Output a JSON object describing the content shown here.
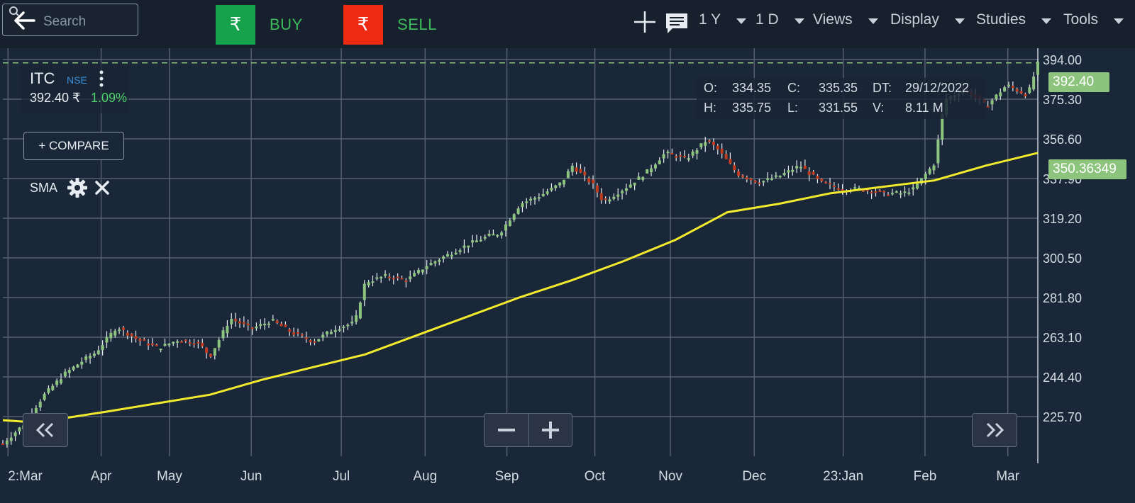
{
  "search": {
    "placeholder": "Search"
  },
  "trade": {
    "buy_label": "BUY",
    "sell_label": "SELL",
    "currency_glyph": "₹"
  },
  "toolbar": {
    "menus": [
      {
        "label": "1 Y"
      },
      {
        "label": "1 D"
      },
      {
        "label": "Views"
      },
      {
        "label": "Display"
      },
      {
        "label": "Studies"
      },
      {
        "label": "Tools"
      }
    ]
  },
  "ticker": {
    "symbol": "ITC",
    "exchange": "NSE",
    "price": "392.40 ₹",
    "change": "1.09%"
  },
  "compare_label": "+ COMPARE",
  "study": {
    "label": "SMA"
  },
  "ohlc": {
    "o_label": "O:",
    "o_value": "334.35",
    "c_label": "C:",
    "c_value": "335.35",
    "dt_label": "DT:",
    "dt_value": "29/12/2022",
    "h_label": "H:",
    "h_value": "335.75",
    "l_label": "L:",
    "l_value": "331.55",
    "v_label": "V:",
    "v_value": "8.11 M"
  },
  "price_tags": {
    "last": "392.40",
    "sma": "350.36349"
  },
  "colors": {
    "up": "#8cc47e",
    "down": "#c23a1e",
    "sma": "#f2ea2c",
    "grid": "#55606d",
    "buy": "#16a24a",
    "sell": "#ee2a12"
  },
  "icons": [
    "back-arrow-icon",
    "search-icon",
    "rupee-icon",
    "crosshair-icon",
    "comment-icon",
    "more-vert-icon",
    "gear-icon",
    "close-icon",
    "chevron-double-left-icon",
    "chevron-double-right-icon"
  ],
  "chart_data": {
    "type": "candlestick",
    "y_ticks": [
      "225.70",
      "244.40",
      "263.10",
      "281.80",
      "300.50",
      "319.20",
      "337.90",
      "356.60",
      "375.30",
      "394.00"
    ],
    "x_ticks": [
      "2:Mar",
      "Apr",
      "May",
      "Jun",
      "Jul",
      "Aug",
      "Sep",
      "Oct",
      "Nov",
      "Dec",
      "23:Jan",
      "Feb",
      "Mar"
    ],
    "ylim": [
      207,
      396
    ],
    "last_price": 392.4,
    "sma_last": 350.36,
    "price_path": [
      [
        0,
        213
      ],
      [
        0.02,
        222
      ],
      [
        0.04,
        236
      ],
      [
        0.06,
        246
      ],
      [
        0.08,
        253
      ],
      [
        0.09,
        256
      ],
      [
        0.11,
        268
      ],
      [
        0.13,
        262
      ],
      [
        0.15,
        258
      ],
      [
        0.17,
        262
      ],
      [
        0.19,
        260
      ],
      [
        0.2,
        254
      ],
      [
        0.22,
        272
      ],
      [
        0.24,
        267
      ],
      [
        0.26,
        271
      ],
      [
        0.28,
        265
      ],
      [
        0.3,
        261
      ],
      [
        0.32,
        267
      ],
      [
        0.34,
        270
      ],
      [
        0.35,
        289
      ],
      [
        0.37,
        292
      ],
      [
        0.39,
        290
      ],
      [
        0.41,
        297
      ],
      [
        0.43,
        302
      ],
      [
        0.45,
        307
      ],
      [
        0.47,
        311
      ],
      [
        0.48,
        312
      ],
      [
        0.5,
        326
      ],
      [
        0.52,
        330
      ],
      [
        0.54,
        336
      ],
      [
        0.55,
        344
      ],
      [
        0.57,
        335
      ],
      [
        0.58,
        327
      ],
      [
        0.6,
        333
      ],
      [
        0.62,
        340
      ],
      [
        0.64,
        350
      ],
      [
        0.66,
        347
      ],
      [
        0.68,
        356
      ],
      [
        0.69,
        352
      ],
      [
        0.71,
        340
      ],
      [
        0.73,
        336
      ],
      [
        0.75,
        339
      ],
      [
        0.77,
        344
      ],
      [
        0.79,
        336
      ],
      [
        0.81,
        333
      ],
      [
        0.83,
        333
      ],
      [
        0.85,
        331
      ],
      [
        0.87,
        331
      ],
      [
        0.88,
        333
      ],
      [
        0.9,
        345
      ],
      [
        0.91,
        375
      ],
      [
        0.93,
        380
      ],
      [
        0.95,
        372
      ],
      [
        0.97,
        382
      ],
      [
        0.99,
        377
      ],
      [
        1,
        392
      ]
    ],
    "sma_path": [
      [
        0,
        224
      ],
      [
        0.03,
        223
      ],
      [
        0.06,
        225
      ],
      [
        0.1,
        228
      ],
      [
        0.15,
        232
      ],
      [
        0.2,
        236
      ],
      [
        0.25,
        243
      ],
      [
        0.3,
        249
      ],
      [
        0.35,
        255
      ],
      [
        0.4,
        264
      ],
      [
        0.45,
        273
      ],
      [
        0.5,
        282
      ],
      [
        0.55,
        290
      ],
      [
        0.6,
        299
      ],
      [
        0.65,
        309
      ],
      [
        0.7,
        322
      ],
      [
        0.75,
        326
      ],
      [
        0.8,
        331
      ],
      [
        0.85,
        334
      ],
      [
        0.9,
        337
      ],
      [
        0.95,
        344
      ],
      [
        1,
        350
      ]
    ]
  }
}
